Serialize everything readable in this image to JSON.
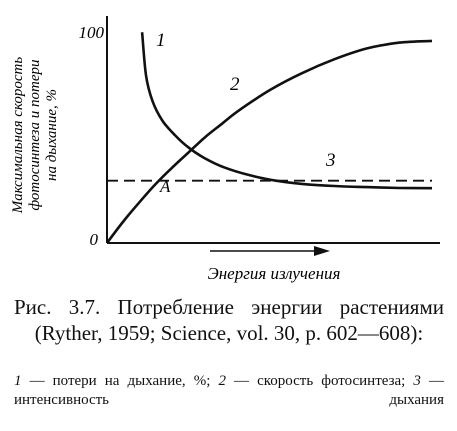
{
  "chart_data": {
    "type": "line",
    "ylabel_line1": "Максимальная скорость",
    "ylabel_line2": "фотосинтеза и потери",
    "ylabel_line3": "на дыхание, %",
    "xlabel": "Энергия излучения",
    "y_ticks": [
      "0",
      "100"
    ],
    "xlim": [
      0,
      100
    ],
    "ylim": [
      0,
      100
    ],
    "series": [
      {
        "label": "1",
        "style": "solid",
        "x": [
          10.8,
          12,
          14,
          17,
          21,
          25,
          30,
          36,
          44,
          52,
          60,
          70,
          80,
          90,
          100
        ],
        "y": [
          98,
          78,
          66,
          57,
          50,
          44.5,
          39.5,
          35.2,
          31.5,
          29,
          27.5,
          26.5,
          26,
          25.6,
          25.5
        ]
      },
      {
        "label": "2",
        "style": "solid",
        "x": [
          0,
          5,
          10,
          15,
          20,
          25,
          30,
          35,
          40,
          50,
          60,
          70,
          80,
          90,
          100
        ],
        "y": [
          0,
          10,
          19,
          27.5,
          35,
          42,
          49,
          55,
          61,
          71,
          79,
          85.5,
          90.5,
          93.2,
          94
        ]
      },
      {
        "label": "3",
        "style": "dashed",
        "x": [
          0,
          100
        ],
        "y": [
          29,
          29
        ]
      }
    ],
    "annotations": [
      {
        "text": "A",
        "x": 14,
        "y": 29
      }
    ],
    "arrow": "right"
  },
  "caption": {
    "main": "Рис. 3.7. Потребление энергии растениями (Ryther, 1959; Science, vol. 30, p. 602—608):",
    "legend": [
      {
        "num": "1",
        "text": " — потери на дыхание, %; "
      },
      {
        "num": "2",
        "text": " — скорость фотосинтеза; "
      },
      {
        "num": "3",
        "text": " — интенсивность дыхания"
      }
    ]
  },
  "colors": {
    "ink": "#111111",
    "background": "#ffffff"
  }
}
